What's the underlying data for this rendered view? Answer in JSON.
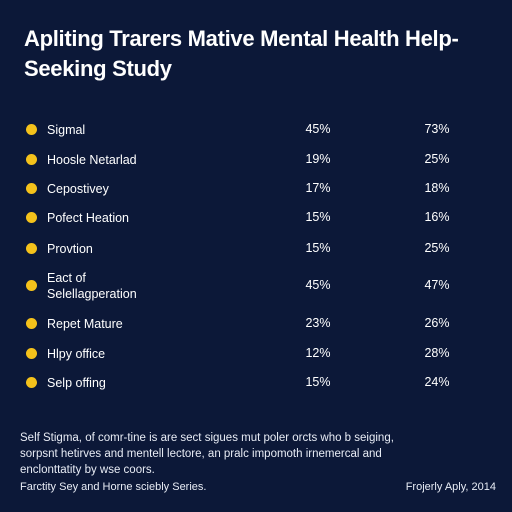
{
  "header": {
    "title": "Apliting Trarers Mative Mental Health Help-Seeking Study"
  },
  "table": {
    "rows": [
      [
        "Sigmal",
        "45%",
        "73%"
      ],
      [
        "Hoosle Netarlad",
        "19%",
        "25%"
      ],
      [
        "Cepostivey",
        "17%",
        "18%"
      ],
      [
        "Pofect Heation",
        "15%",
        "16%"
      ],
      [
        "Provtion",
        "15%",
        "25%"
      ],
      [
        "Eact of\nSelellagperation",
        "45%",
        "47%"
      ],
      [
        "Repet Mature",
        "23%",
        "26%"
      ],
      [
        "Hlpy office",
        "12%",
        "28%"
      ],
      [
        "Selp offing",
        "15%",
        "24%"
      ]
    ]
  },
  "note": "Self Stigma, of comr-tine is are sect sigues mut poler orcts who b seiging, sorpsnt hetirves and mentell lectore, an pralc impomoth irnemercal and enclonttatity by wse coors.",
  "footer": {
    "left": "Farctity Sey and Horne sciebly Series.",
    "right": "Frojerly Aply, 2014"
  }
}
